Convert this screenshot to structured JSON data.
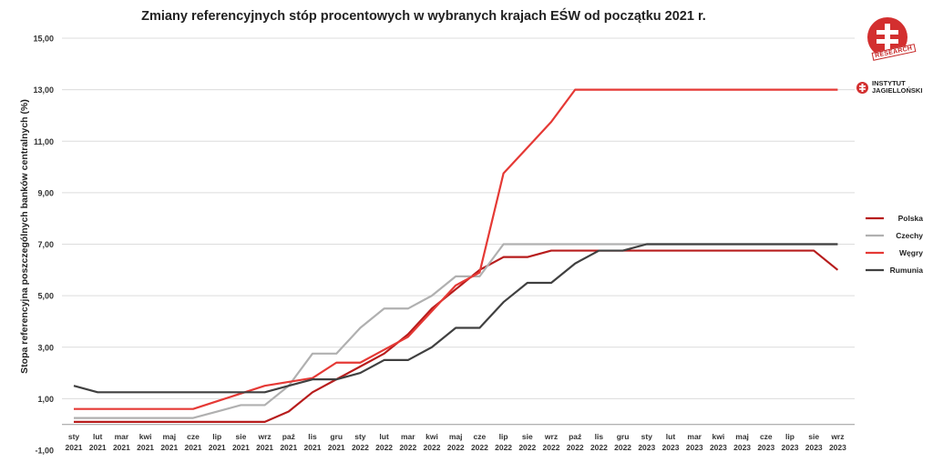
{
  "chart_data": {
    "type": "line",
    "title": "Zmiany referencyjnych stóp procentowych w wybranych krajach EŚW od początku 2021 r.",
    "ylabel": "Stopa referencyjna poszczególnych banków centralnych (%)",
    "xlabel": "",
    "ylim": [
      -1,
      15
    ],
    "yticks": [
      "-1,00",
      "1,00",
      "3,00",
      "5,00",
      "7,00",
      "9,00",
      "11,00",
      "13,00",
      "15,00"
    ],
    "categories": [
      [
        "sty",
        "2021"
      ],
      [
        "lut",
        "2021"
      ],
      [
        "mar",
        "2021"
      ],
      [
        "kwi",
        "2021"
      ],
      [
        "maj",
        "2021"
      ],
      [
        "cze",
        "2021"
      ],
      [
        "lip",
        "2021"
      ],
      [
        "sie",
        "2021"
      ],
      [
        "wrz",
        "2021"
      ],
      [
        "paź",
        "2021"
      ],
      [
        "lis",
        "2021"
      ],
      [
        "gru",
        "2021"
      ],
      [
        "sty",
        "2022"
      ],
      [
        "lut",
        "2022"
      ],
      [
        "mar",
        "2022"
      ],
      [
        "kwi",
        "2022"
      ],
      [
        "maj",
        "2022"
      ],
      [
        "cze",
        "2022"
      ],
      [
        "lip",
        "2022"
      ],
      [
        "sie",
        "2022"
      ],
      [
        "wrz",
        "2022"
      ],
      [
        "paź",
        "2022"
      ],
      [
        "lis",
        "2022"
      ],
      [
        "gru",
        "2022"
      ],
      [
        "sty",
        "2023"
      ],
      [
        "lut",
        "2023"
      ],
      [
        "mar",
        "2023"
      ],
      [
        "kwi",
        "2023"
      ],
      [
        "maj",
        "2023"
      ],
      [
        "cze",
        "2023"
      ],
      [
        "lip",
        "2023"
      ],
      [
        "sie",
        "2023"
      ],
      [
        "wrz",
        "2023"
      ]
    ],
    "grid": true,
    "legend_position": "right",
    "series": [
      {
        "name": "Polska",
        "color": "#b71c1c",
        "x": [
          0,
          1,
          2,
          3,
          4,
          5,
          6,
          7,
          8,
          9,
          10,
          11,
          12,
          13,
          14,
          15,
          16,
          17,
          18,
          19,
          20,
          21,
          22,
          23,
          24,
          25,
          26,
          27,
          28,
          29,
          30,
          31,
          32
        ],
        "values": [
          0.1,
          0.1,
          0.1,
          0.1,
          0.1,
          0.1,
          0.1,
          0.1,
          0.1,
          0.5,
          1.25,
          1.75,
          2.25,
          2.75,
          3.5,
          4.5,
          5.25,
          6.0,
          6.5,
          6.5,
          6.75,
          6.75,
          6.75,
          6.75,
          6.75,
          6.75,
          6.75,
          6.75,
          6.75,
          6.75,
          6.75,
          6.75,
          6.0
        ]
      },
      {
        "name": "Czechy",
        "color": "#b0b0b0",
        "x": [
          0,
          1,
          2,
          3,
          4,
          5,
          6,
          7,
          8,
          9,
          10,
          11,
          12,
          13,
          14,
          15,
          16,
          17,
          18,
          19,
          20,
          21,
          22,
          23,
          24,
          25,
          26,
          27,
          28,
          29,
          30,
          31,
          32
        ],
        "values": [
          0.25,
          0.25,
          0.25,
          0.25,
          0.25,
          0.25,
          0.5,
          0.75,
          0.75,
          1.5,
          2.75,
          2.75,
          3.75,
          4.5,
          4.5,
          5.0,
          5.75,
          5.75,
          7.0,
          7.0,
          7.0,
          7.0,
          7.0,
          7.0,
          7.0,
          7.0,
          7.0,
          7.0,
          7.0,
          7.0,
          7.0,
          7.0,
          7.0
        ]
      },
      {
        "name": "Węgry",
        "color": "#e53935",
        "x": [
          0,
          1,
          2,
          3,
          4,
          5,
          6,
          7,
          8,
          9,
          10,
          11,
          12,
          13,
          14,
          15,
          16,
          17,
          18,
          19,
          20,
          21,
          22,
          23,
          24,
          25,
          26,
          27,
          28,
          29,
          30,
          31,
          32
        ],
        "values": [
          0.6,
          0.6,
          0.6,
          0.6,
          0.6,
          0.6,
          0.9,
          1.2,
          1.5,
          1.65,
          1.8,
          2.4,
          2.4,
          2.9,
          3.4,
          4.4,
          5.4,
          5.9,
          9.75,
          10.75,
          11.75,
          13.0,
          13.0,
          13.0,
          13.0,
          13.0,
          13.0,
          13.0,
          13.0,
          13.0,
          13.0,
          13.0,
          13.0
        ]
      },
      {
        "name": "Rumunia",
        "color": "#404040",
        "x": [
          0,
          1,
          2,
          3,
          4,
          5,
          6,
          7,
          8,
          9,
          10,
          11,
          12,
          13,
          14,
          15,
          16,
          17,
          18,
          19,
          20,
          21,
          22,
          23,
          24,
          25,
          26,
          27,
          28,
          29,
          30,
          31,
          32
        ],
        "values": [
          1.5,
          1.25,
          1.25,
          1.25,
          1.25,
          1.25,
          1.25,
          1.25,
          1.25,
          1.5,
          1.75,
          1.75,
          2.0,
          2.5,
          2.5,
          3.0,
          3.75,
          3.75,
          4.75,
          5.5,
          5.5,
          6.25,
          6.75,
          6.75,
          7.0,
          7.0,
          7.0,
          7.0,
          7.0,
          7.0,
          7.0,
          7.0,
          7.0
        ]
      }
    ]
  },
  "branding": {
    "stamp_text": "RESEARCH",
    "line1": "INSTYTUT",
    "line2": "JAGIELLOŃSKI",
    "brand_color": "#d32f2f"
  }
}
